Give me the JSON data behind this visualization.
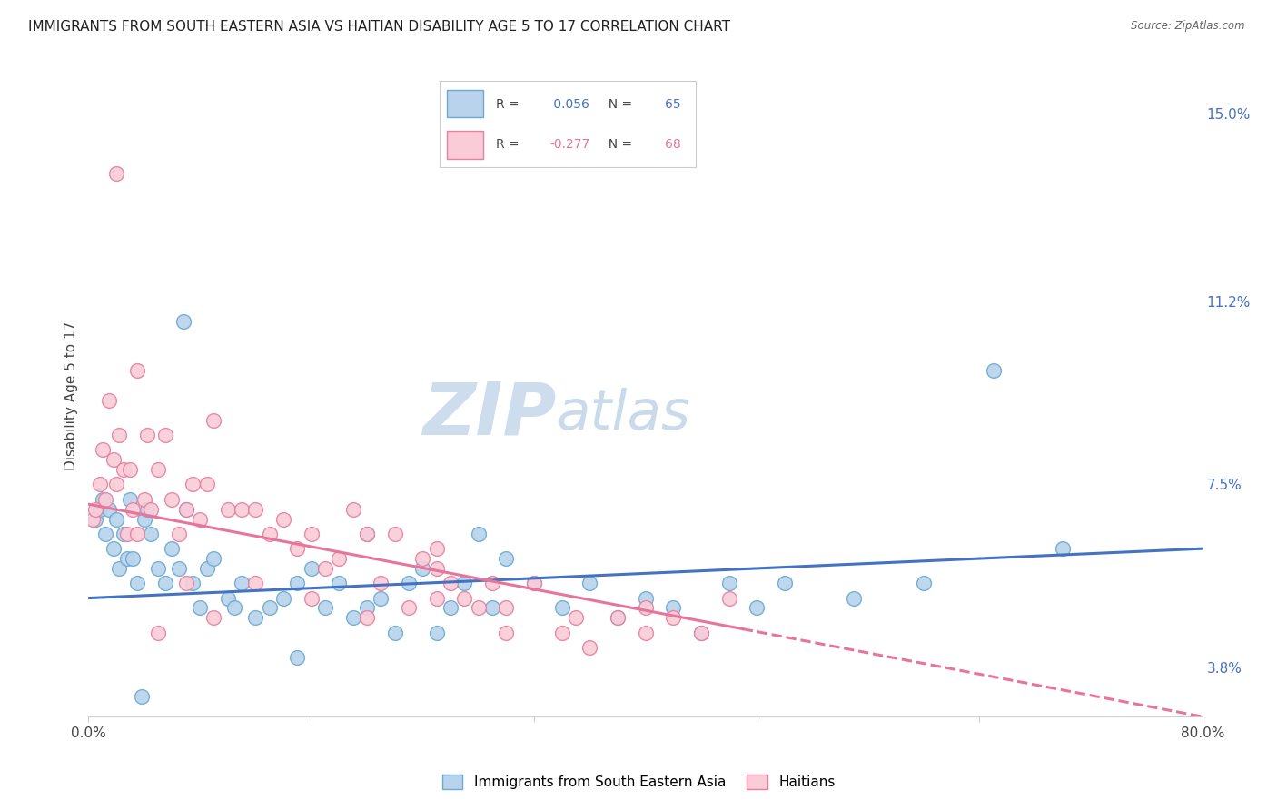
{
  "title": "IMMIGRANTS FROM SOUTH EASTERN ASIA VS HAITIAN DISABILITY AGE 5 TO 17 CORRELATION CHART",
  "source": "Source: ZipAtlas.com",
  "ylabel": "Disability Age 5 to 17",
  "xmin": 0.0,
  "xmax": 80.0,
  "ymin": 2.8,
  "ymax": 15.8,
  "yticks": [
    3.8,
    7.5,
    11.2,
    15.0
  ],
  "series1_label": "Immigrants from South Eastern Asia",
  "series1_color": "#b8d3eb",
  "series1_edge": "#6aaad4",
  "series1_R": 0.056,
  "series1_N": 65,
  "series2_label": "Haitians",
  "series2_color": "#f9ccd8",
  "series2_edge": "#e87fa0",
  "series2_R": -0.277,
  "series2_N": 68,
  "background_color": "#ffffff",
  "grid_color": "#e0e8f0",
  "watermark_zip": "ZIP",
  "watermark_atlas": "atlas",
  "watermark_zip_color": "#c8d8e8",
  "watermark_atlas_color": "#c8d8e8",
  "title_fontsize": 11,
  "axis_label_fontsize": 10,
  "tick_fontsize": 10,
  "legend_fontsize": 10,
  "blue_line_color": "#4472c4",
  "pink_line_color": "#e8749a",
  "right_tick_color": "#4472c4",
  "blue_trend_x0": 0.0,
  "blue_trend_y0": 5.2,
  "blue_trend_x1": 80.0,
  "blue_trend_y1": 6.2,
  "pink_trend_x0": 0.0,
  "pink_trend_y0": 7.1,
  "pink_trend_x1": 80.0,
  "pink_trend_y1": 2.8,
  "pink_solid_end": 47.0,
  "blue_scatter_x": [
    0.5,
    0.8,
    1.0,
    1.2,
    1.5,
    1.8,
    2.0,
    2.2,
    2.5,
    2.8,
    3.0,
    3.2,
    3.5,
    4.0,
    4.2,
    4.5,
    5.0,
    5.5,
    6.0,
    6.5,
    7.0,
    7.5,
    8.0,
    8.5,
    9.0,
    10.0,
    11.0,
    12.0,
    13.0,
    14.0,
    15.0,
    16.0,
    17.0,
    18.0,
    19.0,
    20.0,
    21.0,
    22.0,
    23.0,
    24.0,
    25.0,
    26.0,
    27.0,
    28.0,
    29.0,
    30.0,
    32.0,
    34.0,
    36.0,
    38.0,
    40.0,
    42.0,
    44.0,
    46.0,
    48.0,
    50.0,
    55.0,
    60.0,
    65.0,
    70.0,
    3.8,
    6.8,
    10.5,
    15.0,
    20.0
  ],
  "blue_scatter_y": [
    6.8,
    7.0,
    7.2,
    6.5,
    7.0,
    6.2,
    6.8,
    5.8,
    6.5,
    6.0,
    7.2,
    6.0,
    5.5,
    6.8,
    7.0,
    6.5,
    5.8,
    5.5,
    6.2,
    5.8,
    7.0,
    5.5,
    5.0,
    5.8,
    6.0,
    5.2,
    5.5,
    4.8,
    5.0,
    5.2,
    5.5,
    5.8,
    5.0,
    5.5,
    4.8,
    5.0,
    5.2,
    4.5,
    5.5,
    5.8,
    4.5,
    5.0,
    5.5,
    6.5,
    5.0,
    6.0,
    5.5,
    5.0,
    5.5,
    4.8,
    5.2,
    5.0,
    4.5,
    5.5,
    5.0,
    5.5,
    5.2,
    5.5,
    9.8,
    6.2,
    3.2,
    10.8,
    5.0,
    4.0,
    6.5
  ],
  "pink_scatter_x": [
    0.3,
    0.5,
    0.8,
    1.0,
    1.2,
    1.5,
    1.8,
    2.0,
    2.2,
    2.5,
    2.8,
    3.0,
    3.2,
    3.5,
    4.0,
    4.2,
    4.5,
    5.0,
    5.5,
    6.0,
    6.5,
    7.0,
    7.5,
    8.0,
    8.5,
    9.0,
    10.0,
    11.0,
    12.0,
    13.0,
    14.0,
    15.0,
    16.0,
    17.0,
    18.0,
    19.0,
    20.0,
    21.0,
    22.0,
    23.0,
    24.0,
    25.0,
    26.0,
    27.0,
    28.0,
    29.0,
    30.0,
    32.0,
    34.0,
    36.0,
    38.0,
    40.0,
    42.0,
    44.0,
    46.0,
    2.0,
    3.5,
    5.0,
    7.0,
    9.0,
    12.0,
    16.0,
    20.0,
    25.0,
    30.0,
    35.0,
    40.0,
    25.0
  ],
  "pink_scatter_y": [
    6.8,
    7.0,
    7.5,
    8.2,
    7.2,
    9.2,
    8.0,
    7.5,
    8.5,
    7.8,
    6.5,
    7.8,
    7.0,
    9.8,
    7.2,
    8.5,
    7.0,
    7.8,
    8.5,
    7.2,
    6.5,
    7.0,
    7.5,
    6.8,
    7.5,
    8.8,
    7.0,
    7.0,
    7.0,
    6.5,
    6.8,
    6.2,
    6.5,
    5.8,
    6.0,
    7.0,
    6.5,
    5.5,
    6.5,
    5.0,
    6.0,
    5.8,
    5.5,
    5.2,
    5.0,
    5.5,
    5.0,
    5.5,
    4.5,
    4.2,
    4.8,
    5.0,
    4.8,
    4.5,
    5.2,
    13.8,
    6.5,
    4.5,
    5.5,
    4.8,
    5.5,
    5.2,
    4.8,
    5.2,
    4.5,
    4.8,
    4.5,
    6.2
  ]
}
